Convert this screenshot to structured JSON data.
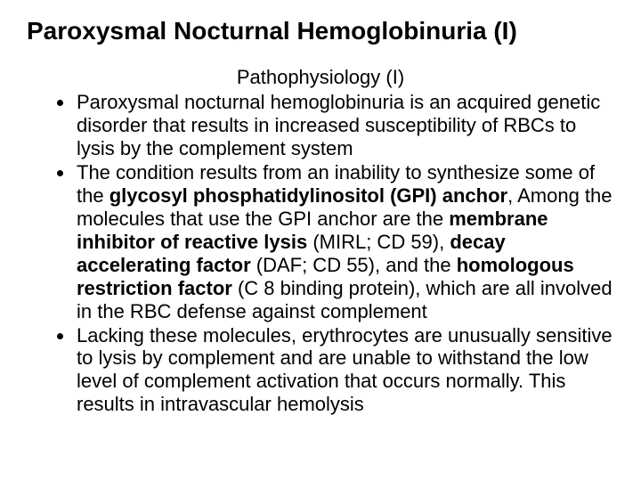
{
  "slide": {
    "title": "Paroxysmal Nocturnal Hemoglobinuria (I)",
    "subtitle": "Pathophysiology (I)",
    "bullets": [
      {
        "runs": [
          {
            "text": "Paroxysmal nocturnal hemoglobinuria is an acquired genetic disorder that results in increased susceptibility of RBCs to lysis by the complement system",
            "bold": false
          }
        ]
      },
      {
        "runs": [
          {
            "text": "The condition results from an inability to synthesize some of the ",
            "bold": false
          },
          {
            "text": "glycosyl phosphatidylinositol (GPI) anchor",
            "bold": true
          },
          {
            "text": ", Among the molecules that use the GPI anchor are the ",
            "bold": false
          },
          {
            "text": "membrane inhibitor of reactive lysis ",
            "bold": true
          },
          {
            "text": "(MIRL; CD 59), ",
            "bold": false
          },
          {
            "text": "decay accelerating factor ",
            "bold": true
          },
          {
            "text": "(DAF; CD 55), and the ",
            "bold": false
          },
          {
            "text": "homologous restriction factor ",
            "bold": true
          },
          {
            "text": "(C 8 binding protein), which are all involved in the RBC defense against complement",
            "bold": false
          }
        ]
      },
      {
        "runs": [
          {
            "text": "Lacking these molecules, erythrocytes are unusually sensitive to lysis by complement and are unable to withstand the low level of complement activation that occurs normally. This results in intravascular hemolysis",
            "bold": false
          }
        ]
      }
    ]
  },
  "style": {
    "background_color": "#ffffff",
    "text_color": "#000000",
    "title_fontsize": 28,
    "subtitle_fontsize": 22,
    "body_fontsize": 22,
    "font_family": "Arial"
  }
}
